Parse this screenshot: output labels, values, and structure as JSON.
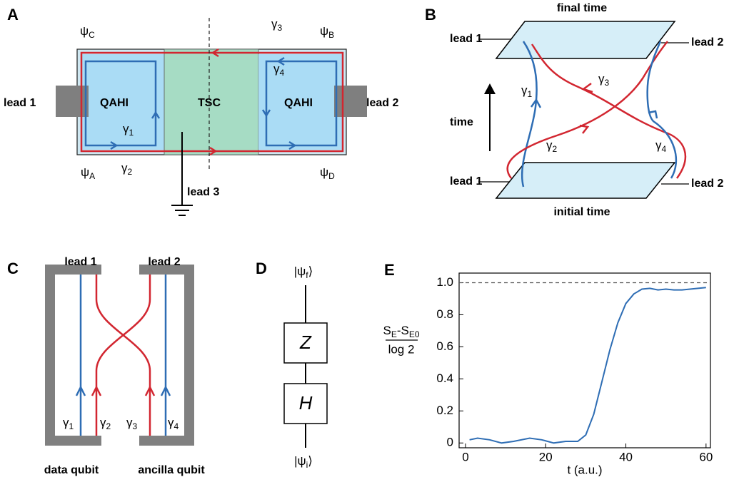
{
  "panel_a": {
    "letter": "A",
    "labels": [
      {
        "text": "ψ",
        "sub": "C"
      },
      {
        "text": "γ",
        "sub": "3"
      },
      {
        "text": "ψ",
        "sub": "B"
      },
      {
        "text": "γ",
        "sub": "4"
      },
      "lead 1",
      "QAHI",
      "TSC",
      "QAHI",
      "lead 2",
      {
        "text": "γ",
        "sub": "1"
      },
      {
        "text": "ψ",
        "sub": "A"
      },
      {
        "text": "γ",
        "sub": "2"
      },
      {
        "text": "ψ",
        "sub": "D"
      },
      "lead 3"
    ]
  },
  "panel_b": {
    "letter": "B",
    "labels": [
      "final time",
      "lead 1",
      "lead 2",
      {
        "text": "γ",
        "sub": "1"
      },
      {
        "text": "γ",
        "sub": "3"
      },
      "time",
      {
        "text": "γ",
        "sub": "2"
      },
      {
        "text": "γ",
        "sub": "4"
      },
      "lead 1",
      "lead 2",
      "initial time"
    ]
  },
  "panel_c": {
    "letter": "C",
    "labels": [
      "lead 1",
      "lead 2",
      {
        "text": "γ",
        "sub": "1"
      },
      {
        "text": "γ",
        "sub": "2"
      },
      {
        "text": "γ",
        "sub": "3"
      },
      {
        "text": "γ",
        "sub": "4"
      },
      "data qubit",
      "ancilla qubit"
    ]
  },
  "panel_d": {
    "letter": "D",
    "labels": [
      {
        "text": "|ψ",
        "sub": "f",
        "tail": "⟩"
      },
      "Z",
      "H",
      {
        "text": "|ψ",
        "sub": "i",
        "tail": "⟩"
      }
    ]
  },
  "chart_data": {
    "type": "line",
    "letter": "E",
    "x": [
      1,
      3,
      6,
      9,
      12,
      16,
      19,
      22,
      25,
      28,
      30,
      32,
      34,
      36,
      38,
      40,
      42,
      44,
      46,
      48,
      50,
      52,
      54,
      56,
      58,
      60
    ],
    "values": [
      0.02,
      0.03,
      0.02,
      0.0,
      0.01,
      0.03,
      0.02,
      0.0,
      0.01,
      0.01,
      0.05,
      0.18,
      0.38,
      0.58,
      0.75,
      0.87,
      0.93,
      0.96,
      0.965,
      0.955,
      0.96,
      0.955,
      0.955,
      0.96,
      0.965,
      0.97
    ],
    "color": "#2e6db4",
    "xlim": [
      -1.6,
      61.1
    ],
    "ylim": [
      -0.03,
      1.06
    ],
    "xticks": [
      0,
      20,
      40,
      60
    ],
    "yticks": [
      0,
      0.2,
      0.4,
      0.6,
      0.8,
      {
        "value": 1,
        "label": "1.0"
      }
    ],
    "hline": 1,
    "xlabel": "t (a.u.)",
    "ylabel_numerator": {
      "text": "S",
      "sub": "E",
      "text2": "-S",
      "sub2": "E0"
    },
    "ylabel_denominator": "log 2"
  }
}
